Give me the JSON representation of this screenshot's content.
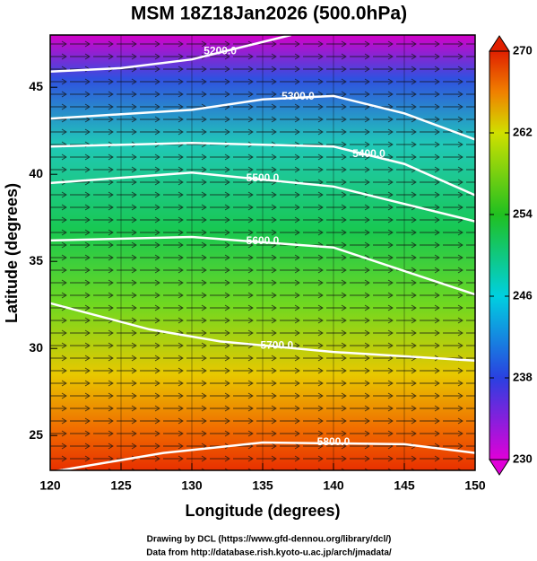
{
  "chart_data": {
    "type": "contour-map",
    "title": "MSM 18Z18Jan2026 (500.0hPa)",
    "x_label": "Longitude (degrees)",
    "y_label": "Latitude  (degrees)",
    "xlim": [
      120,
      150
    ],
    "ylim": [
      23,
      48
    ],
    "xticks": [
      120,
      125,
      130,
      135,
      140,
      145,
      150
    ],
    "yticks": [
      25,
      30,
      35,
      40,
      45
    ],
    "colorbar": {
      "lim": [
        230,
        270
      ],
      "ticks": [
        230,
        238,
        246,
        254,
        262,
        270
      ]
    },
    "contours": [
      {
        "label": "5200.0",
        "lon": [
          120,
          125,
          130,
          134,
          137
        ],
        "lat": [
          45.9,
          46.1,
          46.6,
          47.4,
          48
        ]
      },
      {
        "label": "5300.0",
        "lon": [
          120,
          130,
          135,
          140,
          145,
          150
        ],
        "lat": [
          43.2,
          43.7,
          44.3,
          44.5,
          43.5,
          42
        ]
      },
      {
        "label": "5400.0",
        "lon": [
          120,
          130,
          140,
          145,
          150
        ],
        "lat": [
          41.6,
          41.8,
          41.6,
          40.6,
          38.8
        ]
      },
      {
        "label": "5500.0",
        "lon": [
          120,
          130,
          140,
          150
        ],
        "lat": [
          39.5,
          40.1,
          39.3,
          37.3
        ]
      },
      {
        "label": "5600.0",
        "lon": [
          120,
          130,
          140,
          150
        ],
        "lat": [
          36.2,
          36.4,
          35.8,
          33.1
        ]
      },
      {
        "label": "5700.0",
        "lon": [
          120,
          127,
          132,
          140,
          150
        ],
        "lat": [
          32.6,
          31.1,
          30.4,
          29.8,
          29.3
        ]
      },
      {
        "label": "5800.0",
        "lon": [
          120,
          128,
          135,
          145,
          150
        ],
        "lat": [
          22.9,
          24,
          24.6,
          24.5,
          24
        ]
      }
    ]
  },
  "footer": [
    "Drawing by DCL (https://www.gfd-dennou.org/library/dcl/)",
    "Data from http://database.rish.kyoto-u.ac.jp/arch/jmadata/"
  ]
}
